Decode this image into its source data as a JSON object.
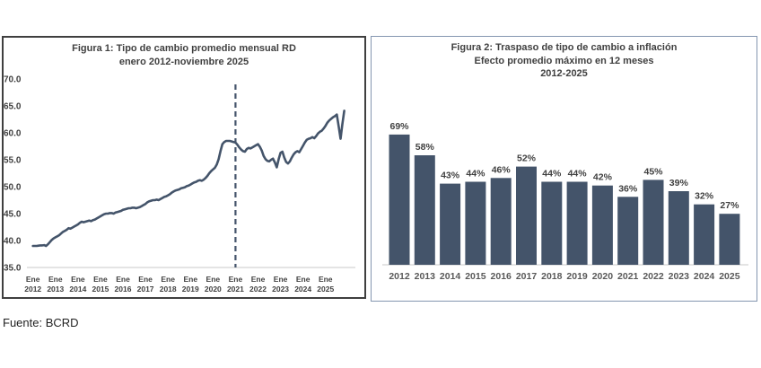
{
  "source_note": "Fuente: BCRD",
  "colors": {
    "series": "#44546A",
    "bar_fill": "#44546A",
    "dashed_line": "#44546A",
    "axis_line": "#C9C9C9",
    "title_text": "#404040",
    "tick_text": "#404040",
    "year_text": "#595959",
    "fig1_border": "#3F3F3F",
    "fig2_border": "#8496B0"
  },
  "chart_data": [
    {
      "type": "line",
      "title_lines": [
        "Figura 1: Tipo de cambio promedio mensual RD",
        "enero 2012-noviembre 2025"
      ],
      "title": "Figura 1: Tipo de cambio promedio mensual RD enero 2012-noviembre 2025",
      "ylim": [
        35.0,
        70.0
      ],
      "y_ticks": [
        35.0,
        40.0,
        45.0,
        50.0,
        55.0,
        60.0,
        65.0,
        70.0
      ],
      "grid": false,
      "legend": "none",
      "x_ticks": {
        "month_label": "Ene",
        "years": [
          "2012",
          "2013",
          "2014",
          "2015",
          "2016",
          "2017",
          "2018",
          "2019",
          "2020",
          "2021",
          "2022",
          "2023",
          "2024",
          "2025"
        ],
        "interval_months": 12
      },
      "annotations": [
        {
          "type": "vline",
          "at": "Ene 2021",
          "month_index": 108,
          "style": "dashed"
        }
      ],
      "series": [
        {
          "name": "Tipo de cambio promedio mensual RD",
          "x_start": "Ene 2012",
          "x_end": "Nov 2025",
          "frequency": "monthly",
          "values": [
            39.0,
            39.0,
            39.0,
            39.05,
            39.1,
            39.1,
            39.15,
            39.0,
            39.3,
            39.7,
            40.1,
            40.4,
            40.6,
            40.8,
            41.0,
            41.3,
            41.6,
            41.8,
            42.0,
            42.3,
            42.2,
            42.4,
            42.6,
            42.8,
            43.0,
            43.3,
            43.5,
            43.4,
            43.5,
            43.6,
            43.7,
            43.6,
            43.8,
            43.9,
            44.1,
            44.3,
            44.5,
            44.7,
            44.9,
            45.0,
            45.0,
            45.1,
            45.1,
            45.0,
            45.2,
            45.3,
            45.4,
            45.5,
            45.7,
            45.8,
            45.9,
            46.0,
            46.0,
            46.1,
            46.1,
            46.0,
            46.1,
            46.2,
            46.4,
            46.6,
            46.8,
            47.1,
            47.3,
            47.4,
            47.5,
            47.5,
            47.6,
            47.5,
            47.7,
            47.9,
            48.1,
            48.2,
            48.4,
            48.6,
            48.9,
            49.1,
            49.3,
            49.4,
            49.5,
            49.7,
            49.8,
            49.9,
            50.1,
            50.2,
            50.4,
            50.6,
            50.8,
            50.9,
            51.1,
            51.2,
            51.1,
            51.3,
            51.6,
            52.0,
            52.5,
            52.9,
            53.2,
            53.5,
            54.1,
            55.1,
            56.6,
            57.9,
            58.3,
            58.5,
            58.5,
            58.5,
            58.4,
            58.3,
            58.2,
            57.8,
            57.3,
            56.9,
            56.6,
            56.5,
            57.0,
            57.2,
            57.1,
            57.3,
            57.5,
            57.7,
            57.9,
            57.4,
            56.7,
            55.7,
            55.1,
            54.8,
            54.7,
            55.0,
            55.2,
            54.5,
            53.6,
            55.1,
            56.3,
            56.5,
            55.4,
            54.6,
            54.3,
            54.7,
            55.4,
            56.0,
            56.4,
            56.6,
            56.4,
            57.0,
            57.6,
            58.2,
            58.7,
            58.9,
            59.0,
            59.2,
            59.0,
            59.4,
            59.9,
            60.2,
            60.4,
            60.8,
            61.3,
            61.9,
            62.3,
            62.6,
            62.9,
            63.1,
            63.4,
            61.2,
            58.9,
            61.6,
            64.1
          ]
        }
      ]
    },
    {
      "type": "bar",
      "title_lines": [
        "Figura 2: Traspaso de tipo de cambio a inflación",
        "Efecto promedio máximo en 12 meses",
        "2012-2025"
      ],
      "title": "Figura 2: Traspaso de tipo de cambio a inflación. Efecto promedio máximo en 12 meses 2012-2025",
      "categories": [
        "2012",
        "2013",
        "2014",
        "2015",
        "2016",
        "2017",
        "2018",
        "2019",
        "2020",
        "2021",
        "2022",
        "2023",
        "2024",
        "2025"
      ],
      "values": [
        69,
        58,
        43,
        44,
        46,
        52,
        44,
        44,
        42,
        36,
        45,
        39,
        32,
        27
      ],
      "value_labels": [
        "69%",
        "58%",
        "43%",
        "44%",
        "46%",
        "52%",
        "44%",
        "44%",
        "42%",
        "36%",
        "45%",
        "39%",
        "32%",
        "27%"
      ],
      "ylim": [
        0,
        80
      ],
      "grid": false,
      "legend": "none",
      "xlabel": "",
      "ylabel": ""
    }
  ]
}
